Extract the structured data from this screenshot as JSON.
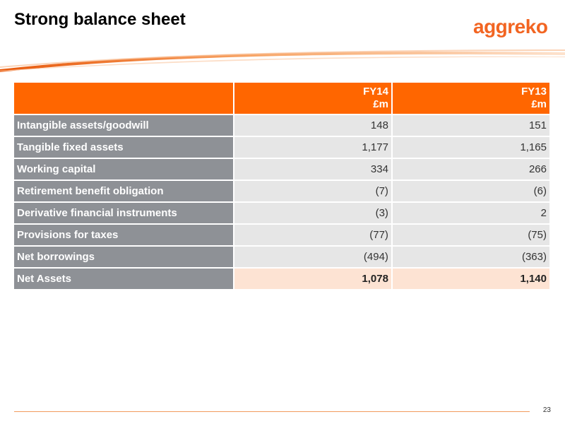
{
  "slide": {
    "title": "Strong balance sheet",
    "logo_text": "aggreko",
    "page_number": "23"
  },
  "colors": {
    "accent_orange": "#ff6600",
    "logo_orange": "#f26522",
    "row_label_grey": "#8e9196",
    "cell_grey": "#e6e6e6",
    "total_row_peach": "#fde3d3"
  },
  "table": {
    "columns": [
      {
        "year": "FY14",
        "unit": "£m"
      },
      {
        "year": "FY13",
        "unit": "£m"
      }
    ],
    "rows": [
      {
        "label": "Intangible assets/goodwill",
        "fy14": "148",
        "fy13": "151"
      },
      {
        "label": "Tangible fixed assets",
        "fy14": "1,177",
        "fy13": "1,165"
      },
      {
        "label": "Working capital",
        "fy14": "334",
        "fy13": "266"
      },
      {
        "label": "Retirement benefit obligation",
        "fy14": "(7)",
        "fy13": "(6)"
      },
      {
        "label": "Derivative financial instruments",
        "fy14": "(3)",
        "fy13": "2"
      },
      {
        "label": "Provisions for taxes",
        "fy14": "(77)",
        "fy13": "(75)"
      },
      {
        "label": "Net borrowings",
        "fy14": "(494)",
        "fy13": "(363)"
      }
    ],
    "total": {
      "label": "Net Assets",
      "fy14": "1,078",
      "fy13": "1,140"
    }
  }
}
